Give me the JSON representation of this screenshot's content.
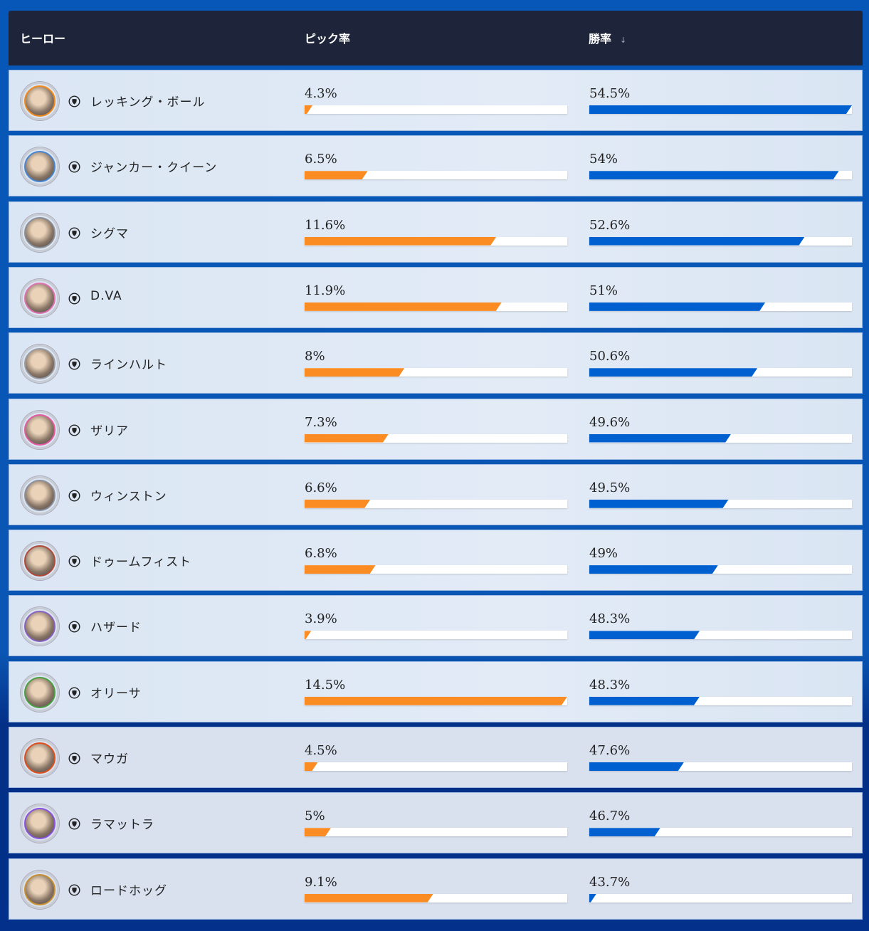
{
  "header": {
    "hero": "ヒーロー",
    "pick_rate": "ピック率",
    "win_rate": "勝率",
    "sort_icon": "arrow-down-icon",
    "sort_glyph": "↓"
  },
  "colors": {
    "pick_bar": "#fb8c23",
    "win_bar": "#0060d0",
    "header_bg": "#1e253a"
  },
  "rows": [
    {
      "name": "レッキング・ボール",
      "pick": "4.3%",
      "win": "54.5%",
      "pick_fill": 0.03,
      "win_fill": 1.0,
      "ring": "#f08a1c",
      "role": "tank-icon"
    },
    {
      "name": "ジャンカー・クイーン",
      "pick": "6.5%",
      "win": "54%",
      "pick_fill": 0.24,
      "win_fill": 0.95,
      "ring": "#4a86d0",
      "role": "tank-icon"
    },
    {
      "name": "シグマ",
      "pick": "11.6%",
      "win": "52.6%",
      "pick_fill": 0.73,
      "win_fill": 0.82,
      "ring": "#8a8f98",
      "role": "tank-icon"
    },
    {
      "name": "D.VA",
      "pick": "11.9%",
      "win": "51%",
      "pick_fill": 0.75,
      "win_fill": 0.67,
      "ring": "#e070b0",
      "role": "tank-icon"
    },
    {
      "name": "ラインハルト",
      "pick": "8%",
      "win": "50.6%",
      "pick_fill": 0.38,
      "win_fill": 0.64,
      "ring": "#9a9ca4",
      "role": "tank-icon"
    },
    {
      "name": "ザリア",
      "pick": "7.3%",
      "win": "49.6%",
      "pick_fill": 0.32,
      "win_fill": 0.54,
      "ring": "#e45aa0",
      "role": "tank-icon"
    },
    {
      "name": "ウィンストン",
      "pick": "6.6%",
      "win": "49.5%",
      "pick_fill": 0.25,
      "win_fill": 0.53,
      "ring": "#8a8f9a",
      "role": "tank-icon"
    },
    {
      "name": "ドゥームフィスト",
      "pick": "6.8%",
      "win": "49%",
      "pick_fill": 0.27,
      "win_fill": 0.49,
      "ring": "#b04a3a",
      "role": "tank-icon"
    },
    {
      "name": "ハザード",
      "pick": "3.9%",
      "win": "48.3%",
      "pick_fill": 0.02,
      "win_fill": 0.42,
      "ring": "#8a60c0",
      "role": "tank-icon"
    },
    {
      "name": "オリーサ",
      "pick": "14.5%",
      "win": "48.3%",
      "pick_fill": 1.0,
      "win_fill": 0.42,
      "ring": "#4aa040",
      "role": "tank-icon"
    },
    {
      "name": "マウガ",
      "pick": "4.5%",
      "win": "47.6%",
      "pick_fill": 0.05,
      "win_fill": 0.36,
      "ring": "#e0501c",
      "role": "tank-icon"
    },
    {
      "name": "ラマットラ",
      "pick": "5%",
      "win": "46.7%",
      "pick_fill": 0.1,
      "win_fill": 0.27,
      "ring": "#8a50e0",
      "role": "tank-icon"
    },
    {
      "name": "ロードホッグ",
      "pick": "9.1%",
      "win": "43.7%",
      "pick_fill": 0.49,
      "win_fill": 0.027,
      "ring": "#c89030",
      "role": "tank-icon"
    }
  ]
}
